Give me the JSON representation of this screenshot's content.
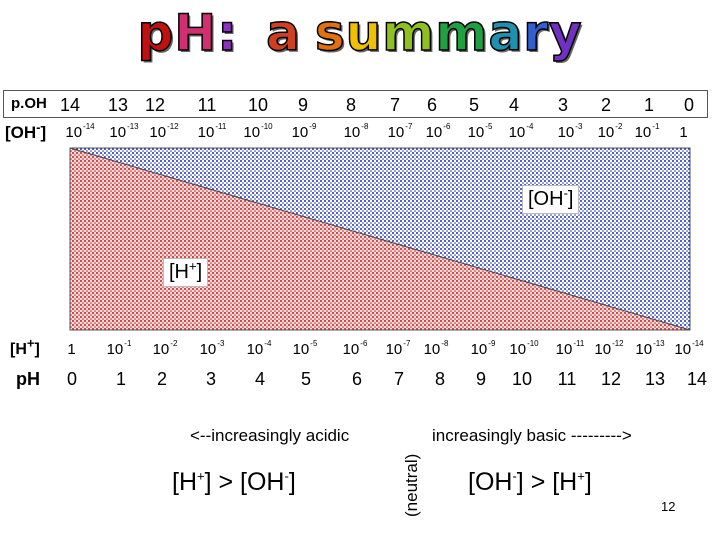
{
  "title": {
    "letters": [
      "p",
      "H",
      ":",
      " ",
      " ",
      "a",
      " ",
      "s",
      "u",
      "m",
      "m",
      "a",
      "r",
      "y"
    ],
    "colors": [
      "#c01010",
      "#d03070",
      "#9030c0",
      "#000000",
      "#000000",
      "#d04020",
      "#000000",
      "#e07010",
      "#f0c000",
      "#90c020",
      "#20a040",
      "#2090b0",
      "#3060d0",
      "#7030c0"
    ]
  },
  "poh_row": {
    "label": "p.OH",
    "values": [
      "14",
      "13",
      "12",
      "11",
      "10",
      "9",
      "8",
      "7",
      "6",
      "5",
      "4",
      "3",
      "2",
      "1",
      "0"
    ]
  },
  "oh_row": {
    "label_base": "[OH",
    "label_sup": "-",
    "label_close": "]",
    "values": [
      {
        "b": "10",
        "e": "-14"
      },
      {
        "b": "10",
        "e": "-13"
      },
      {
        "b": "10",
        "e": "-12"
      },
      {
        "b": "10",
        "e": "-11"
      },
      {
        "b": "10",
        "e": "-10"
      },
      {
        "b": "10",
        "e": "-9"
      },
      {
        "b": "10",
        "e": "-8"
      },
      {
        "b": "10",
        "e": "-7"
      },
      {
        "b": "10",
        "e": "-6"
      },
      {
        "b": "10",
        "e": "-5"
      },
      {
        "b": "10",
        "e": "-4"
      },
      {
        "b": "10",
        "e": "-3"
      },
      {
        "b": "10",
        "e": "-2"
      },
      {
        "b": "10",
        "e": "-1"
      },
      {
        "b": "1",
        "e": ""
      }
    ]
  },
  "h_row": {
    "label_base": "[H",
    "label_sup": "+",
    "label_close": "]",
    "values": [
      {
        "b": "1",
        "e": ""
      },
      {
        "b": "10",
        "e": "-1"
      },
      {
        "b": "10",
        "e": "-2"
      },
      {
        "b": "10",
        "e": "-3"
      },
      {
        "b": "10",
        "e": "-4"
      },
      {
        "b": "10",
        "e": "-5"
      },
      {
        "b": "10",
        "e": "-6"
      },
      {
        "b": "10",
        "e": "-7"
      },
      {
        "b": "10",
        "e": "-8"
      },
      {
        "b": "10",
        "e": "-9"
      },
      {
        "b": "10",
        "e": "-10"
      },
      {
        "b": "10",
        "e": "-11"
      },
      {
        "b": "10",
        "e": "-12"
      },
      {
        "b": "10",
        "e": "-13"
      },
      {
        "b": "10",
        "e": "-14"
      }
    ]
  },
  "ph_row": {
    "label": "pH",
    "values": [
      "0",
      "1",
      "2",
      "3",
      "4",
      "5",
      "6",
      "7",
      "8",
      "9",
      "10",
      "11",
      "12",
      "13",
      "14"
    ]
  },
  "diagram": {
    "oh_label": {
      "base": "[OH",
      "sup": "-",
      "close": "]"
    },
    "h_label": {
      "base": "[H",
      "sup": "+",
      "close": "]"
    },
    "colors": {
      "oh_region": "#1a2fbf",
      "h_region": "#cc1a1a",
      "background": "#ffffff"
    }
  },
  "bottom": {
    "acidic": "<--increasingly acidic",
    "neutral": "(neutral)",
    "basic": "increasingly basic --------->",
    "acid_ineq": {
      "a": "[H",
      "a_sup": "+",
      "mid": "] > [OH",
      "b_sup": "-",
      "end": "]"
    },
    "base_ineq": {
      "a": "[OH",
      "a_sup": "-",
      "mid": "] > [H",
      "b_sup": "+",
      "end": "]"
    }
  },
  "page_number": "12"
}
